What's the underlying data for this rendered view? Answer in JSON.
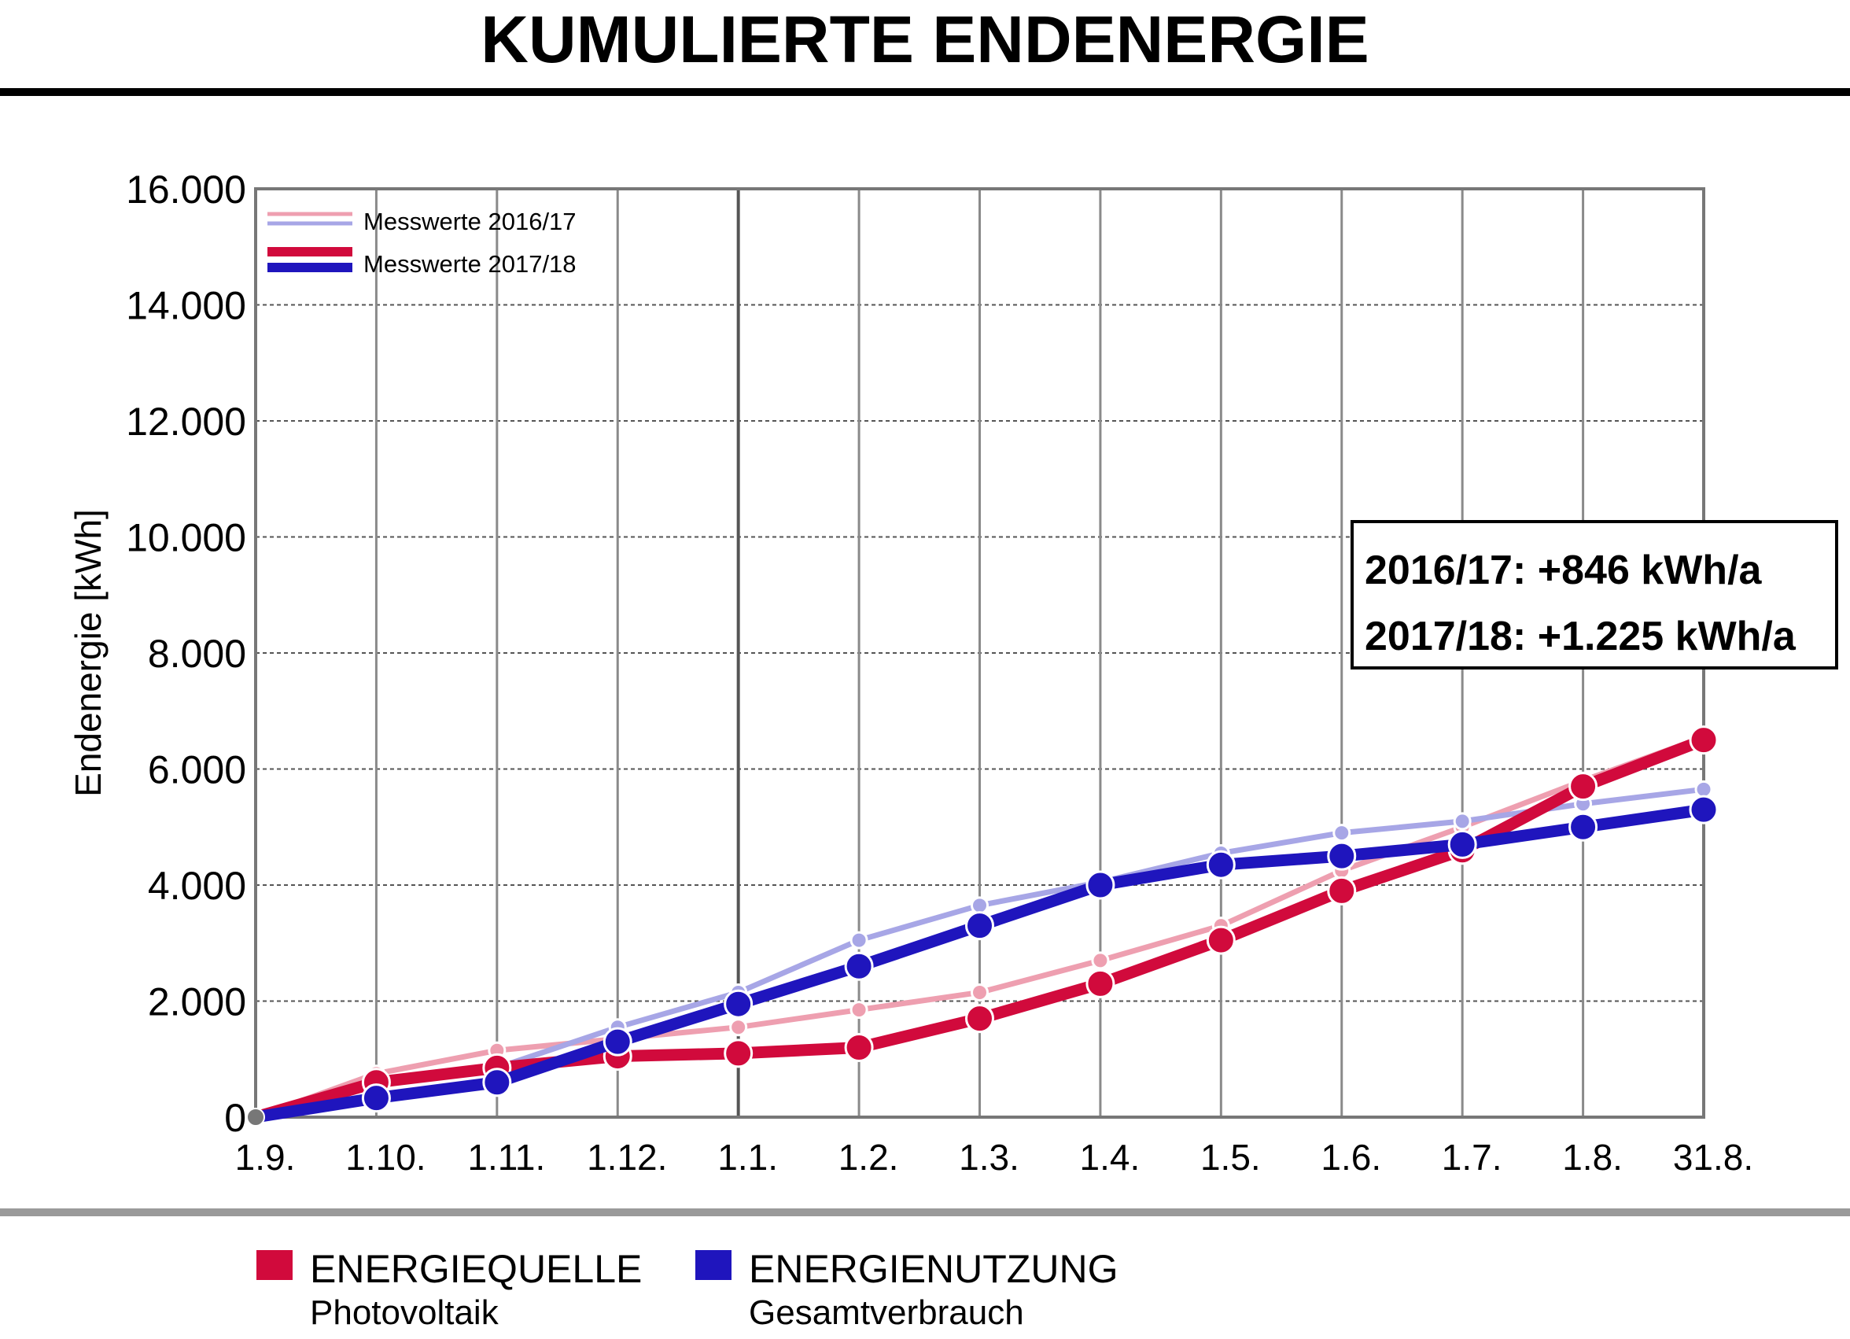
{
  "title": "KUMULIERTE ENDENERGIE",
  "chart_data": {
    "type": "line",
    "ylabel": "Endenergie [kWh]",
    "xlabel": "",
    "ylim": [
      0,
      16000
    ],
    "yticks": [
      0,
      2000,
      4000,
      6000,
      8000,
      10000,
      12000,
      14000,
      16000
    ],
    "ytick_labels": [
      "0",
      "2.000",
      "4.000",
      "6.000",
      "8.000",
      "10.000",
      "12.000",
      "14.000",
      "16.000"
    ],
    "categories": [
      "1.9.",
      "1.10.",
      "1.11.",
      "1.12.",
      "1.1.",
      "1.2.",
      "1.3.",
      "1.4.",
      "1.5.",
      "1.6.",
      "1.7.",
      "1.8.",
      "31.8."
    ],
    "grid": true,
    "series": [
      {
        "color": "#ee9fb0",
        "values": [
          0,
          750,
          1150,
          1350,
          1550,
          1850,
          2150,
          2700,
          3300,
          4250,
          5000,
          5800,
          6550
        ]
      },
      {
        "color": "#a7a6e6",
        "values": [
          0,
          550,
          850,
          1550,
          2150,
          3050,
          3650,
          4050,
          4550,
          4900,
          5100,
          5400,
          5650
        ]
      },
      {
        "color": "#d10a3c",
        "values": [
          0,
          600,
          850,
          1050,
          1100,
          1200,
          1700,
          2300,
          3050,
          3900,
          4600,
          5700,
          6500
        ]
      },
      {
        "color": "#1f15bd",
        "values": [
          0,
          330,
          600,
          1300,
          1950,
          2600,
          3300,
          4000,
          4350,
          4500,
          4700,
          5000,
          5300
        ]
      }
    ],
    "inner_legend": [
      {
        "label": "Messwerte 2016/17",
        "colors": [
          "#ee9fb0",
          "#a7a6e6"
        ]
      },
      {
        "label": "Messwerte 2017/18",
        "colors": [
          "#d10a3c",
          "#1f15bd"
        ]
      }
    ],
    "annotations": [
      "2016/17: +846 kWh/a",
      "2017/18: +1.225 kWh/a"
    ]
  },
  "legend": [
    {
      "label": "ENERGIEQUELLE",
      "sublabel": "Photovoltaik",
      "color": "#d10a3c"
    },
    {
      "label": "ENERGIENUTZUNG",
      "sublabel": "Gesamtverbrauch",
      "color": "#1f15bd"
    }
  ]
}
